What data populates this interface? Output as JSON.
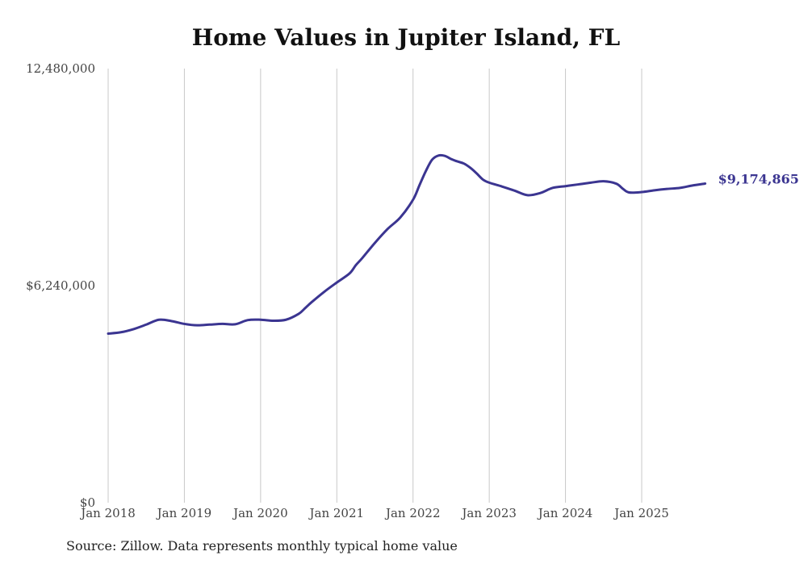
{
  "chart_data": {
    "type": "line",
    "title": "Home Values in Jupiter Island, FL",
    "source": "Source: Zillow. Data represents monthly typical home value",
    "xlabel": "",
    "ylabel": "",
    "ylim": [
      0,
      12480000
    ],
    "y_ticks": [
      {
        "value": 0,
        "label": "$0"
      },
      {
        "value": 6240000,
        "label": "$6,240,000"
      },
      {
        "value": 12480000,
        "label": "12,480,000"
      }
    ],
    "x_range": [
      2018.0,
      2026.2
    ],
    "x_ticks": [
      {
        "value": 2018,
        "label": "Jan 2018"
      },
      {
        "value": 2019,
        "label": "Jan 2019"
      },
      {
        "value": 2020,
        "label": "Jan 2020"
      },
      {
        "value": 2021,
        "label": "Jan 2021"
      },
      {
        "value": 2022,
        "label": "Jan 2022"
      },
      {
        "value": 2023,
        "label": "Jan 2023"
      },
      {
        "value": 2024,
        "label": "Jan 2024"
      },
      {
        "value": 2025,
        "label": "Jan 2025"
      }
    ],
    "grid": "vertical",
    "line_color": "#3b3591",
    "end_label": "$9,174,865",
    "series": [
      {
        "name": "Typical home value",
        "x": [
          2018.0,
          2018.167,
          2018.333,
          2018.5,
          2018.667,
          2018.833,
          2019.0,
          2019.167,
          2019.333,
          2019.5,
          2019.667,
          2019.833,
          2020.0,
          2020.167,
          2020.333,
          2020.5,
          2020.583,
          2020.667,
          2020.833,
          2021.0,
          2021.167,
          2021.25,
          2021.333,
          2021.5,
          2021.667,
          2021.833,
          2022.0,
          2022.083,
          2022.167,
          2022.25,
          2022.333,
          2022.417,
          2022.5,
          2022.583,
          2022.667,
          2022.75,
          2022.833,
          2022.917,
          2023.0,
          2023.167,
          2023.333,
          2023.5,
          2023.667,
          2023.833,
          2024.0,
          2024.167,
          2024.333,
          2024.5,
          2024.667,
          2024.75,
          2024.833,
          2025.0,
          2025.167,
          2025.333,
          2025.5,
          2025.667,
          2025.833
        ],
        "values": [
          4860000,
          4900000,
          4990000,
          5120000,
          5260000,
          5220000,
          5140000,
          5100000,
          5120000,
          5140000,
          5130000,
          5250000,
          5260000,
          5230000,
          5260000,
          5430000,
          5590000,
          5760000,
          6060000,
          6330000,
          6590000,
          6830000,
          7030000,
          7470000,
          7870000,
          8200000,
          8710000,
          9120000,
          9530000,
          9860000,
          9980000,
          9970000,
          9880000,
          9810000,
          9750000,
          9630000,
          9470000,
          9290000,
          9200000,
          9090000,
          8970000,
          8840000,
          8900000,
          9050000,
          9100000,
          9150000,
          9200000,
          9240000,
          9170000,
          9030000,
          8920000,
          8930000,
          8980000,
          9020000,
          9050000,
          9120000,
          9174865
        ]
      }
    ]
  }
}
